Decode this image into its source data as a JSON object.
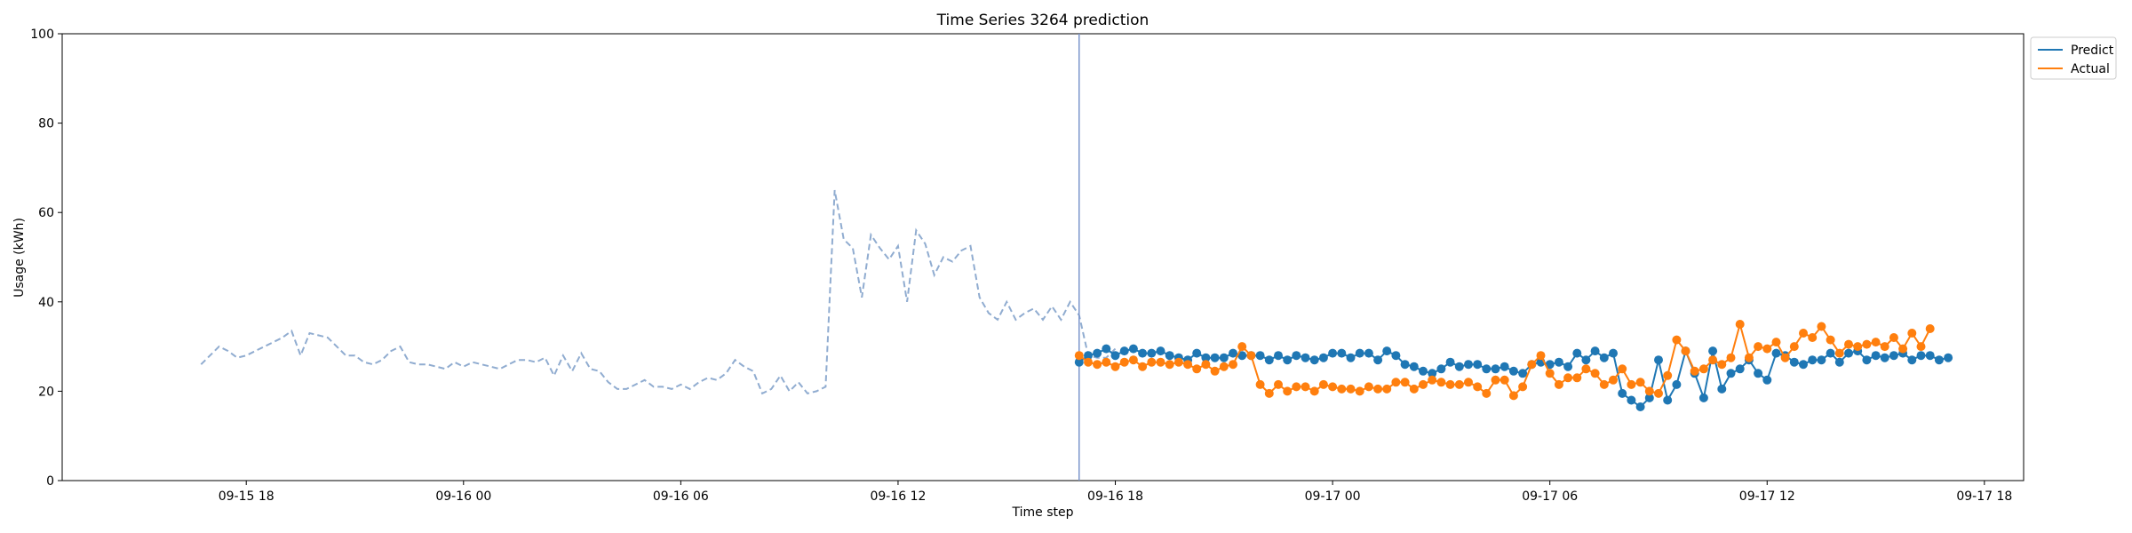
{
  "chart_data": {
    "type": "line",
    "title": "Time Series 3264 prediction",
    "xlabel": "Time step",
    "ylabel": "Usage (kWh)",
    "ylim": [
      0,
      100
    ],
    "yticks": [
      0,
      20,
      40,
      60,
      80,
      100
    ],
    "x_axis": {
      "kind": "time",
      "min": "09-15 12:55",
      "max": "09-17 19:05",
      "tick_labels": [
        "09-15 18",
        "09-16 00",
        "09-16 06",
        "09-16 12",
        "09-16 18",
        "09-17 00",
        "09-17 06",
        "09-17 12",
        "09-17 18"
      ],
      "tick_times": [
        "09-15 18:00",
        "09-16 00:00",
        "09-16 06:00",
        "09-16 12:00",
        "09-16 18:00",
        "09-17 00:00",
        "09-17 06:00",
        "09-17 12:00",
        "09-17 18:00"
      ]
    },
    "split_time": "09-16 17:00",
    "interval_minutes": 15,
    "grid": false,
    "legend_position": "top-right, outside plot",
    "history": {
      "start": "09-15 16:45",
      "color": "#90acd0",
      "style": "dashed",
      "values": [
        26,
        28,
        30,
        29,
        27.5,
        28,
        29,
        30,
        31,
        32,
        33.5,
        28,
        33,
        32.5,
        32,
        30,
        28,
        28,
        26.5,
        26,
        27,
        29,
        30,
        26.5,
        26,
        26,
        25.5,
        25,
        26.5,
        25.5,
        26.5,
        26,
        25.5,
        25,
        26,
        27,
        27,
        26.5,
        27.5,
        23.5,
        28,
        24.5,
        28.5,
        25,
        24.5,
        22,
        20.5,
        20.5,
        21.5,
        22.5,
        21,
        21,
        20.5,
        21.5,
        20.5,
        22,
        23,
        22.5,
        24,
        27,
        25.5,
        24.5,
        19.5,
        20.5,
        23.5,
        20,
        22,
        19.5,
        20,
        21,
        65,
        54,
        52,
        41,
        55,
        52,
        49.5,
        52.5,
        40,
        56,
        53,
        46,
        50,
        49,
        51.5,
        52.5,
        41,
        37.5,
        36,
        40,
        36,
        37.5,
        38.5,
        36,
        39,
        36,
        40,
        37,
        28,
        27.5,
        27.5,
        29.5
      ]
    },
    "series": [
      {
        "name": "Predict",
        "color": "#1f77b4",
        "start": "09-16 17:00",
        "values": [
          26.5,
          28,
          28.5,
          29.5,
          28,
          29,
          29.5,
          28.5,
          28.5,
          29,
          28,
          27.5,
          27,
          28.5,
          27.5,
          27.5,
          27.5,
          28.5,
          28,
          28,
          28,
          27,
          28,
          27,
          28,
          27.5,
          27,
          27.5,
          28.5,
          28.5,
          27.5,
          28.5,
          28.5,
          27,
          29,
          28,
          26,
          25.5,
          24.5,
          24,
          25,
          26.5,
          25.5,
          26,
          26,
          25,
          25,
          25.5,
          24.5,
          24,
          26,
          26.5,
          26,
          26.5,
          25.5,
          28.5,
          27,
          29,
          27.5,
          28.5,
          19.5,
          18,
          16.5,
          18.5,
          27,
          18,
          21.5,
          29,
          24,
          18.5,
          29,
          20.5,
          24,
          25,
          27,
          24,
          22.5,
          28.5,
          28,
          26.5,
          26,
          27,
          27,
          28.5,
          26.5,
          28.5,
          29,
          27,
          28,
          27.5,
          28,
          28.5,
          27,
          28,
          28,
          27,
          27.5
        ]
      },
      {
        "name": "Actual",
        "color": "#ff7f0e",
        "start": "09-16 17:00",
        "values": [
          28,
          26.5,
          26,
          26.5,
          25.5,
          26.5,
          27,
          25.5,
          26.5,
          26.5,
          26,
          26.5,
          26,
          25,
          26,
          24.5,
          25.5,
          26,
          30,
          28,
          21.5,
          19.5,
          21.5,
          20,
          21,
          21,
          20,
          21.5,
          21,
          20.5,
          20.5,
          20,
          21,
          20.5,
          20.5,
          22,
          22,
          20.5,
          21.5,
          22.5,
          22,
          21.5,
          21.5,
          22,
          21,
          19.5,
          22.5,
          22.5,
          19,
          21,
          26,
          28,
          24,
          21.5,
          23,
          23,
          25,
          24,
          21.5,
          22.5,
          25,
          21.5,
          22,
          20,
          19.5,
          23.5,
          31.5,
          29,
          24.5,
          25,
          27,
          26,
          27.5,
          35,
          27.5,
          30,
          29.5,
          31,
          27.5,
          30,
          33,
          32,
          34.5,
          31.5,
          28.5,
          30.5,
          30,
          30.5,
          31,
          30,
          32,
          29.5,
          33,
          30,
          34
        ]
      }
    ]
  }
}
